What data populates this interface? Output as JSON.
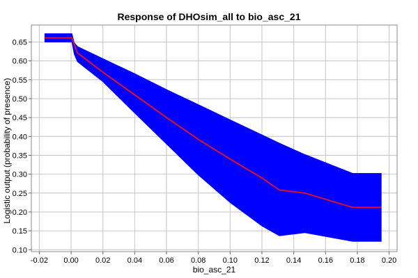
{
  "chart_data": {
    "type": "line",
    "title": "Response of DHOsim_all to bio_asc_21",
    "xlabel": "bio_asc_21",
    "ylabel": "Logistic output (probability of presence)",
    "xlim": [
      -0.025,
      0.205
    ],
    "ylim": [
      0.095,
      0.695
    ],
    "x_ticks": [
      "-0.02",
      "0.00",
      "0.02",
      "0.04",
      "0.06",
      "0.08",
      "0.10",
      "0.12",
      "0.14",
      "0.16",
      "0.18",
      "0.20"
    ],
    "x_tick_values": [
      -0.02,
      0.0,
      0.02,
      0.04,
      0.06,
      0.08,
      0.1,
      0.12,
      0.14,
      0.16,
      0.18,
      0.2
    ],
    "y_ticks": [
      "0.10",
      "0.15",
      "0.20",
      "0.25",
      "0.30",
      "0.35",
      "0.40",
      "0.45",
      "0.50",
      "0.55",
      "0.60",
      "0.65"
    ],
    "y_tick_values": [
      0.1,
      0.15,
      0.2,
      0.25,
      0.3,
      0.35,
      0.4,
      0.45,
      0.5,
      0.55,
      0.6,
      0.65
    ],
    "grid": true,
    "series": [
      {
        "kind": "line",
        "color": "#e0102a",
        "x": [
          -0.0165,
          0.0005,
          0.004,
          0.02,
          0.04,
          0.06,
          0.08,
          0.1,
          0.12,
          0.131,
          0.147,
          0.177,
          0.195
        ],
        "values": [
          0.661,
          0.661,
          0.621,
          0.57,
          0.51,
          0.45,
          0.392,
          0.34,
          0.29,
          0.258,
          0.25,
          0.212,
          0.212
        ]
      },
      {
        "kind": "band",
        "color": "#0000ff",
        "x": [
          -0.0165,
          0.0005,
          0.002,
          0.004,
          0.02,
          0.04,
          0.06,
          0.08,
          0.1,
          0.12,
          0.131,
          0.147,
          0.177,
          0.195
        ],
        "upper": [
          0.672,
          0.672,
          0.648,
          0.638,
          0.606,
          0.566,
          0.524,
          0.484,
          0.444,
          0.404,
          0.382,
          0.352,
          0.302,
          0.302
        ],
        "lower": [
          0.65,
          0.65,
          0.618,
          0.598,
          0.545,
          0.462,
          0.38,
          0.298,
          0.225,
          0.163,
          0.137,
          0.145,
          0.122,
          0.122
        ]
      }
    ]
  }
}
